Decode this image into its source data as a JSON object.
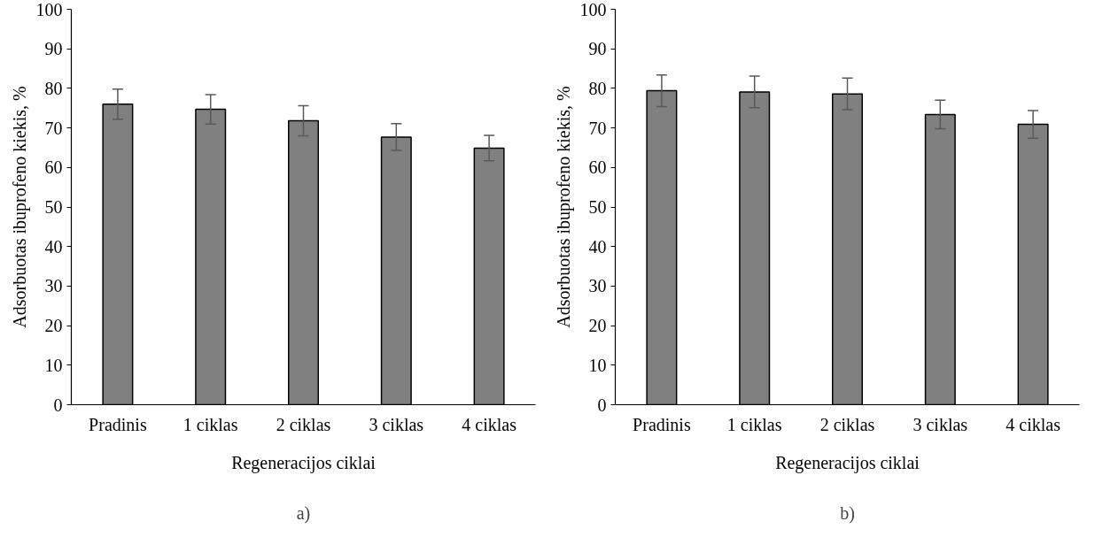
{
  "chart_data": [
    {
      "type": "bar",
      "categories": [
        "Pradinis",
        "1 ciklas",
        "2 ciklas",
        "3 ciklas",
        "4 ciklas"
      ],
      "values": [
        76.0,
        74.7,
        71.8,
        67.7,
        64.9
      ],
      "errors": [
        3.8,
        3.7,
        3.8,
        3.4,
        3.2
      ],
      "color": "#808080",
      "xlabel": "Regeneracijos ciklai",
      "ylabel": "Adsorbuotas ibuprofeno kiekis, %",
      "ylim": [
        0,
        100
      ],
      "yticks": [
        0,
        10,
        20,
        30,
        40,
        50,
        60,
        70,
        80,
        90,
        100
      ],
      "grid": false,
      "annotations": [
        "a)"
      ]
    },
    {
      "type": "bar",
      "categories": [
        "Pradinis",
        "1 ciklas",
        "2 ciklas",
        "3 ciklas",
        "4 ciklas"
      ],
      "values": [
        79.4,
        79.1,
        78.6,
        73.4,
        70.9
      ],
      "errors": [
        4.0,
        4.0,
        4.0,
        3.6,
        3.5
      ],
      "color": "#808080",
      "xlabel": "Regeneracijos ciklai",
      "ylabel": "Adsorbuotas ibuprofeno kiekis, %",
      "ylim": [
        0,
        100
      ],
      "yticks": [
        0,
        10,
        20,
        30,
        40,
        50,
        60,
        70,
        80,
        90,
        100
      ],
      "grid": false,
      "annotations": [
        "b)"
      ]
    }
  ]
}
